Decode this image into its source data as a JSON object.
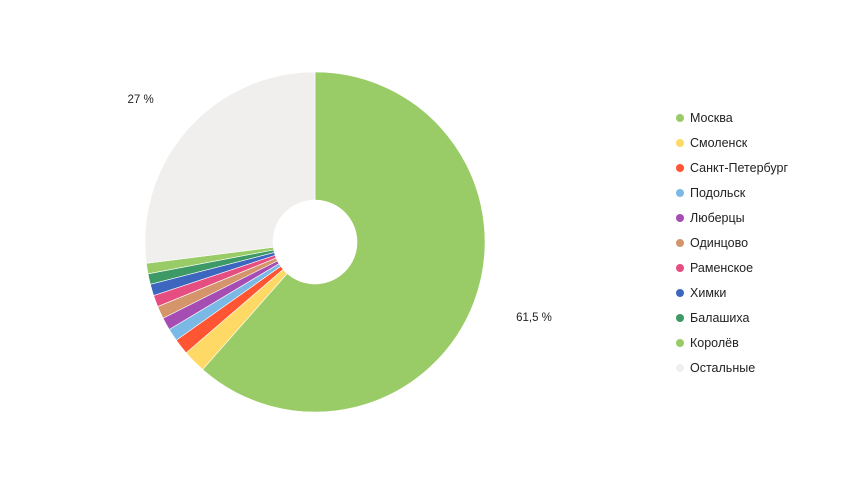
{
  "chart_data": {
    "type": "pie",
    "donut": true,
    "legend_position": "right",
    "slices": [
      {
        "label": "Москва",
        "value": 61.5,
        "color": "#99cc66",
        "data_label": "61,5 %"
      },
      {
        "label": "Смоленск",
        "value": 2.2,
        "color": "#ffd966",
        "data_label": ""
      },
      {
        "label": "Санкт-Петербург",
        "value": 1.5,
        "color": "#ff5533",
        "data_label": ""
      },
      {
        "label": "Подольск",
        "value": 1.2,
        "color": "#7ab8e6",
        "data_label": ""
      },
      {
        "label": "Люберцы",
        "value": 1.2,
        "color": "#a64db3",
        "data_label": ""
      },
      {
        "label": "Одинцово",
        "value": 1.2,
        "color": "#d4956b",
        "data_label": ""
      },
      {
        "label": "Раменское",
        "value": 1.1,
        "color": "#e64d80",
        "data_label": ""
      },
      {
        "label": "Химки",
        "value": 1.1,
        "color": "#3d66bf",
        "data_label": ""
      },
      {
        "label": "Балашиха",
        "value": 1.0,
        "color": "#3d9966",
        "data_label": ""
      },
      {
        "label": "Королёв",
        "value": 1.0,
        "color": "#99cc66",
        "data_label": ""
      },
      {
        "label": "Остальные",
        "value": 27.0,
        "color": "#f0efed",
        "data_label": "27 %"
      }
    ]
  }
}
